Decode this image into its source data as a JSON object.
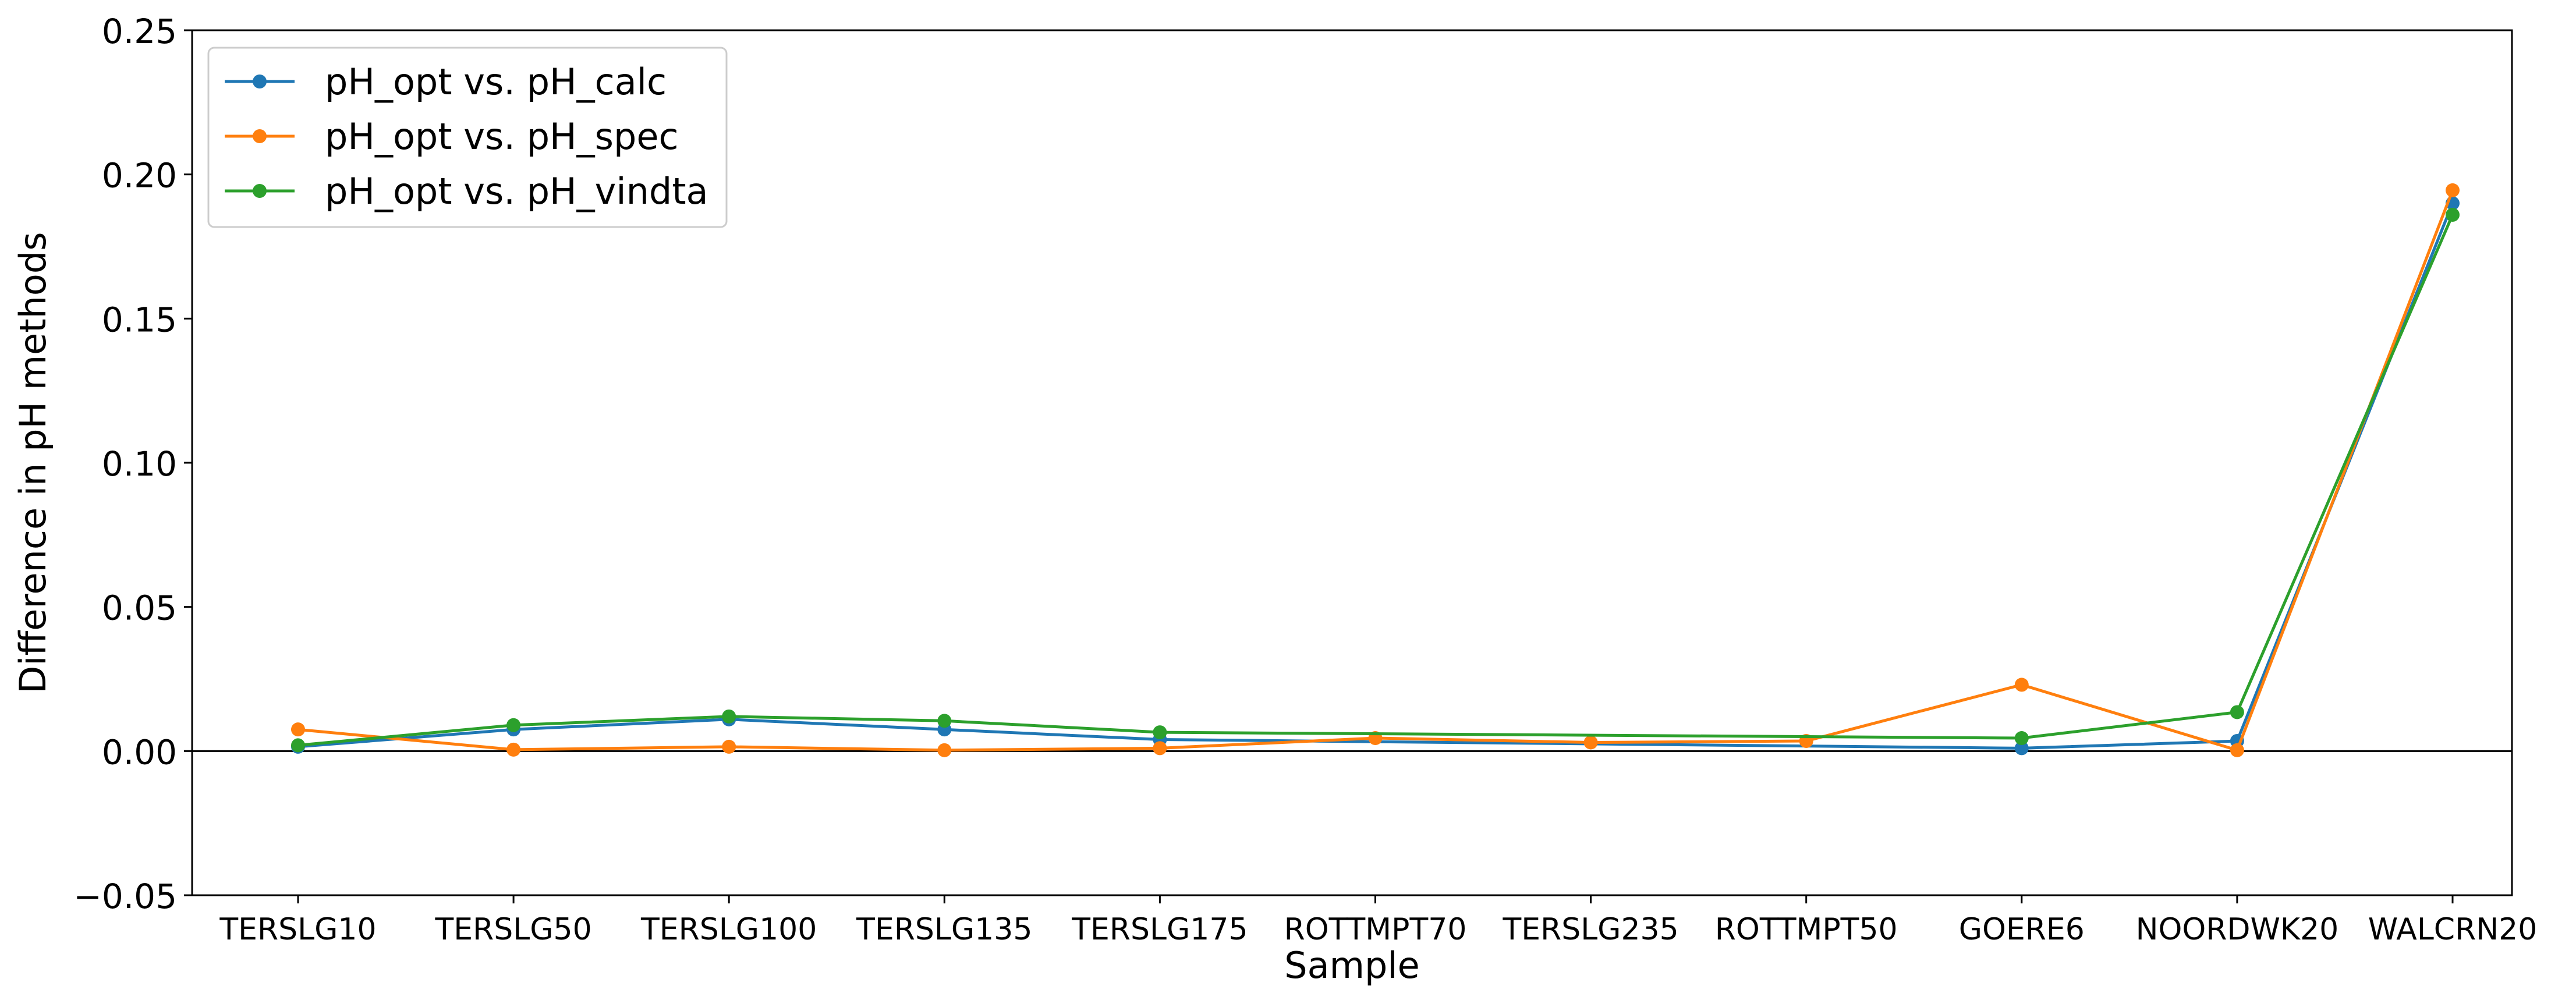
{
  "chart_data": {
    "type": "line",
    "xlabel": "Sample",
    "ylabel": "Difference in pH methods",
    "categories": [
      "TERSLG10",
      "TERSLG50",
      "TERSLG100",
      "TERSLG135",
      "TERSLG175",
      "ROTTMPT70",
      "TERSLG235",
      "ROTTMPT50",
      "GOERE6",
      "NOORDWK20",
      "WALCRN20"
    ],
    "ylim": [
      -0.05,
      0.25
    ],
    "yticks": [
      -0.05,
      0.0,
      0.05,
      0.1,
      0.15,
      0.2,
      0.25
    ],
    "ytick_labels": [
      "−0.05",
      "0.00",
      "0.05",
      "0.10",
      "0.15",
      "0.20",
      "0.25"
    ],
    "zero_line": 0,
    "grid": false,
    "legend_position": "top-left",
    "series": [
      {
        "name": "pH_opt vs. pH_calc",
        "color": "#1f77b4",
        "values": [
          0.0015,
          0.0075,
          0.011,
          0.0075,
          0.004,
          null,
          null,
          null,
          0.001,
          0.0035,
          0.19
        ]
      },
      {
        "name": "pH_opt vs. pH_spec",
        "color": "#ff7f0e",
        "values": [
          0.0075,
          0.0005,
          0.0015,
          0.0003,
          0.001,
          0.0045,
          0.003,
          0.0035,
          0.023,
          0.0003,
          0.1945
        ]
      },
      {
        "name": "pH_opt vs. pH_vindta",
        "color": "#2ca02c",
        "values": [
          0.002,
          0.009,
          0.012,
          0.0105,
          0.0065,
          null,
          null,
          null,
          0.0045,
          0.0135,
          0.186
        ]
      }
    ]
  }
}
